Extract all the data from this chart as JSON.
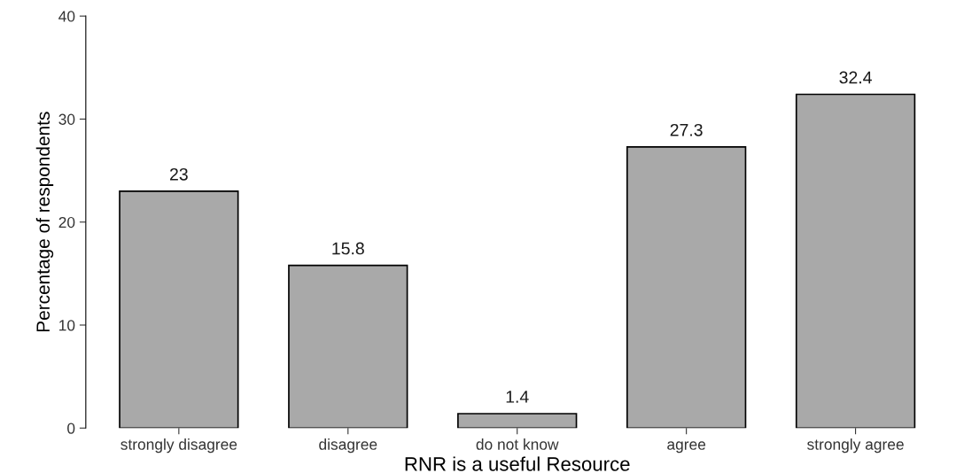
{
  "chart_data": {
    "type": "bar",
    "xlabel": "RNR is a useful Resource",
    "ylabel": "Percentage of respondents",
    "categories": [
      "strongly disagree",
      "disagree",
      "do not know",
      "agree",
      "strongly agree"
    ],
    "values": [
      23,
      15.8,
      1.4,
      27.3,
      32.4
    ],
    "color": "#a9a9a9",
    "ylim": [
      0,
      40
    ],
    "yticks": [
      0,
      10,
      20,
      30,
      40
    ],
    "grid": false,
    "data_labels": true
  }
}
